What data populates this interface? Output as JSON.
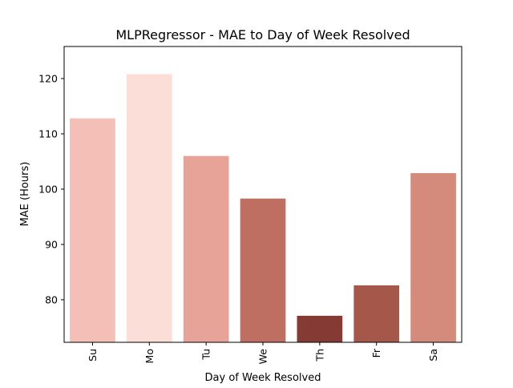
{
  "chart_data": {
    "type": "bar",
    "title": "MLPRegressor - MAE to Day of Week Resolved",
    "xlabel": "Day of Week Resolved",
    "ylabel": "MAE (Hours)",
    "categories": [
      "Su",
      "Mo",
      "Tu",
      "We",
      "Th",
      "Fr",
      "Sa"
    ],
    "values": [
      112.8,
      120.8,
      106.0,
      98.3,
      77.1,
      82.6,
      102.9
    ],
    "colors": [
      "#f4bfb6",
      "#fbded8",
      "#e7a397",
      "#bf6f62",
      "#853a33",
      "#a55849",
      "#d58b7c"
    ],
    "ylim": [
      72.3,
      125.8
    ],
    "yticks": [
      80,
      90,
      100,
      110,
      120
    ],
    "ytick_labels": [
      "80",
      "90",
      "100",
      "110",
      "120"
    ],
    "grid": false,
    "xtick_rotation": 90
  }
}
